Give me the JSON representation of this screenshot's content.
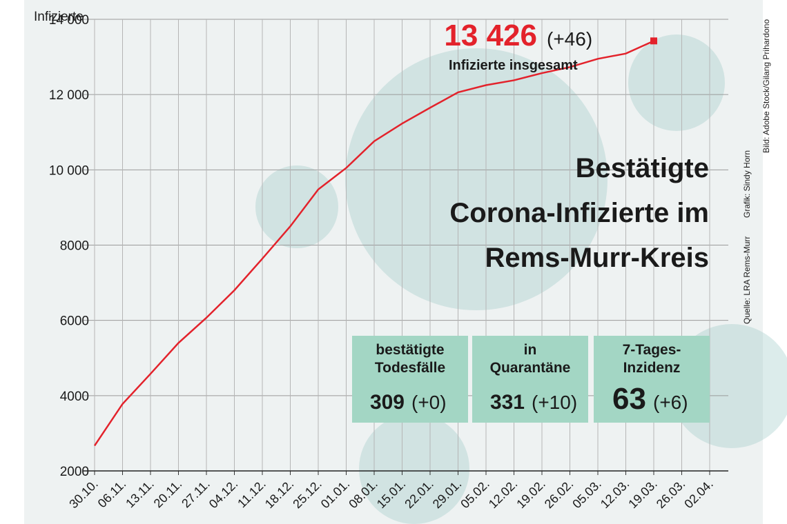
{
  "chart_data": {
    "type": "line",
    "title": [
      "Bestätigte",
      "Corona-Infizierte im",
      "Rems-Murr-Kreis"
    ],
    "y_label": "Infizierte",
    "categories": [
      "30.10.",
      "06.11.",
      "13.11.",
      "20.11.",
      "27.11.",
      "04.12.",
      "11.12.",
      "18.12.",
      "25.12.",
      "01.01.",
      "08.01.",
      "15.01.",
      "22.01.",
      "29.01.",
      "05.02.",
      "12.02.",
      "19.02.",
      "26.02.",
      "05.03.",
      "12.03.",
      "19.03.",
      "26.03.",
      "02.04."
    ],
    "series": [
      {
        "name": "Infizierte",
        "color": "#e3222b",
        "values": [
          2670,
          3780,
          4580,
          5400,
          6070,
          6800,
          7640,
          8500,
          9480,
          10050,
          10760,
          11230,
          11650,
          12060,
          12250,
          12380,
          12570,
          12730,
          12950,
          13090,
          13426,
          null,
          null
        ]
      }
    ],
    "ylim": [
      2000,
      14000
    ],
    "yticks": [
      2000,
      4000,
      6000,
      8000,
      {
        "value": 10000,
        "label": "10 000"
      },
      {
        "value": 12000,
        "label": "12 000"
      },
      {
        "value": 14000,
        "label": "14 000"
      }
    ],
    "grid": true,
    "annotation": {
      "total": "13 426",
      "change": "(+46)",
      "label": "Infizierte insgesamt"
    },
    "info_boxes": [
      {
        "label": [
          "bestätigte",
          "Todesfälle"
        ],
        "value": 309,
        "change": "(+0)"
      },
      {
        "label": [
          "in",
          "Quarantäne"
        ],
        "value": 331,
        "change": "(+10)"
      },
      {
        "label": [
          "7-Tages-",
          "Inzidenz"
        ],
        "value": 63,
        "change": "(+6)"
      }
    ],
    "credits": [
      "Quelle: LRA Rems-Murr",
      "Grafik: Sindy Horn",
      "Bild: Adobe Stock/Gilang Prihardono"
    ]
  }
}
